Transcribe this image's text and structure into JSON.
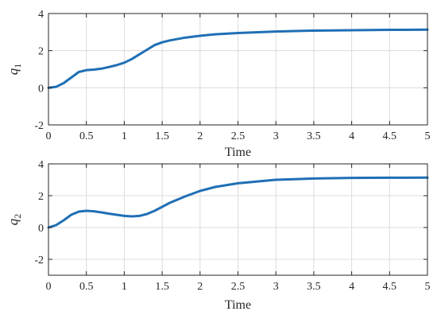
{
  "chart_data": [
    {
      "type": "line",
      "ylabel": "q",
      "ylabel_subscript": "1",
      "xlabel": "Time",
      "xlim": [
        0,
        5
      ],
      "ylim": [
        -2,
        4
      ],
      "xticks": [
        0,
        0.5,
        1,
        1.5,
        2,
        2.5,
        3,
        3.5,
        4,
        4.5,
        5
      ],
      "xtick_labels": [
        "0",
        "0.5",
        "1",
        "1.5",
        "2",
        "2.5",
        "3",
        "3.5",
        "4",
        "4.5",
        "5"
      ],
      "yticks": [
        -2,
        0,
        2,
        4
      ],
      "ytick_labels": [
        "-2",
        "0",
        "2",
        "4"
      ],
      "grid": true,
      "color": "#1f6fb5",
      "series": [
        {
          "x": [
            0,
            0.1,
            0.2,
            0.3,
            0.4,
            0.5,
            0.6,
            0.7,
            0.8,
            0.9,
            1.0,
            1.1,
            1.2,
            1.3,
            1.4,
            1.5,
            1.6,
            1.8,
            2.0,
            2.2,
            2.5,
            3.0,
            3.5,
            4.0,
            4.5,
            5.0
          ],
          "y": [
            0,
            0.05,
            0.25,
            0.55,
            0.85,
            0.95,
            0.98,
            1.03,
            1.12,
            1.22,
            1.35,
            1.55,
            1.8,
            2.05,
            2.3,
            2.45,
            2.55,
            2.7,
            2.8,
            2.88,
            2.95,
            3.03,
            3.08,
            3.1,
            3.12,
            3.13
          ]
        }
      ]
    },
    {
      "type": "line",
      "ylabel": "q",
      "ylabel_subscript": "2",
      "xlabel": "Time",
      "xlim": [
        0,
        5
      ],
      "ylim": [
        -3,
        4
      ],
      "xticks": [
        0,
        0.5,
        1,
        1.5,
        2,
        2.5,
        3,
        3.5,
        4,
        4.5,
        5
      ],
      "xtick_labels": [
        "0",
        "0.5",
        "1",
        "1.5",
        "2",
        "2.5",
        "3",
        "3.5",
        "4",
        "4.5",
        "5"
      ],
      "yticks": [
        -2,
        0,
        2,
        4
      ],
      "ytick_labels": [
        "-2",
        "0",
        "2",
        "4"
      ],
      "grid": true,
      "color": "#1f6fb5",
      "series": [
        {
          "x": [
            0,
            0.1,
            0.2,
            0.3,
            0.4,
            0.5,
            0.6,
            0.7,
            0.8,
            0.9,
            1.0,
            1.1,
            1.2,
            1.3,
            1.4,
            1.5,
            1.6,
            1.8,
            2.0,
            2.2,
            2.5,
            3.0,
            3.5,
            4.0,
            4.5,
            5.0
          ],
          "y": [
            0,
            0.15,
            0.45,
            0.8,
            1.0,
            1.05,
            1.02,
            0.95,
            0.87,
            0.8,
            0.73,
            0.7,
            0.73,
            0.85,
            1.05,
            1.3,
            1.55,
            1.95,
            2.3,
            2.55,
            2.78,
            3.0,
            3.08,
            3.12,
            3.13,
            3.14
          ]
        }
      ]
    }
  ]
}
